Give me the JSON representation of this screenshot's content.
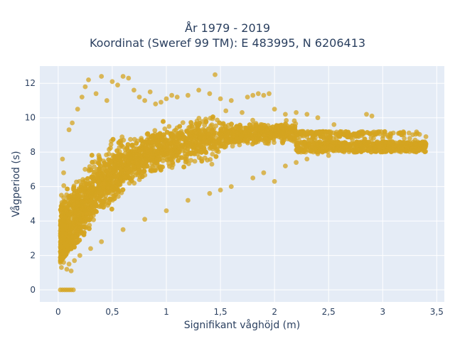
{
  "chart_data": {
    "type": "scatter",
    "title_lines": [
      "År 1979 - 2019",
      "Koordinat (Sweref 99 TM): E 483995, N 6206413"
    ],
    "xlabel": "Signifikant våghöjd (m)",
    "ylabel": "Vågperiod (s)",
    "xlim": [
      -0.17,
      3.57
    ],
    "ylim": [
      -0.7,
      13
    ],
    "x_ticks": [
      0,
      0.5,
      1,
      1.5,
      2,
      2.5,
      3,
      3.5
    ],
    "x_tick_labels": [
      "0",
      "0,5",
      "1",
      "1,5",
      "2",
      "2,5",
      "3",
      "3,5"
    ],
    "y_ticks": [
      0,
      2,
      4,
      6,
      8,
      10,
      12
    ],
    "y_tick_labels": [
      "0",
      "2",
      "4",
      "6",
      "8",
      "10",
      "12"
    ],
    "grid": true,
    "legend": "none",
    "colors": {
      "marker": "#d4a420",
      "plot_bg": "#e5ecf6",
      "grid": "#ffffff",
      "text": "#2a3f5f"
    },
    "marker_opacity": 0.75,
    "point_cloud": {
      "description_type": "dense scatter of wave height vs wave period",
      "x_range": [
        0,
        3.42
      ],
      "y_range": [
        0,
        12.5
      ],
      "zero_period_points_x_range": [
        0,
        0.15
      ]
    },
    "points": [
      [
        0.02,
        0
      ],
      [
        0.04,
        0
      ],
      [
        0.06,
        0
      ],
      [
        0.08,
        0
      ],
      [
        0.1,
        0
      ],
      [
        0.12,
        0
      ],
      [
        0.14,
        0
      ],
      [
        0.03,
        1.3
      ],
      [
        0.05,
        1.6
      ],
      [
        0.08,
        1.2
      ],
      [
        0.1,
        1.5
      ],
      [
        0.12,
        1.1
      ],
      [
        0.15,
        1.7
      ],
      [
        0.02,
        2.5
      ],
      [
        0.04,
        3.5
      ],
      [
        0.06,
        4.2
      ],
      [
        0.03,
        5.5
      ],
      [
        0.05,
        6.8
      ],
      [
        0.04,
        7.6
      ],
      [
        0.1,
        9.3
      ],
      [
        0.13,
        9.7
      ],
      [
        0.18,
        10.5
      ],
      [
        0.22,
        11.2
      ],
      [
        0.25,
        11.8
      ],
      [
        0.28,
        12.2
      ],
      [
        0.35,
        11.4
      ],
      [
        0.4,
        12.4
      ],
      [
        0.45,
        11.0
      ],
      [
        0.5,
        12.1
      ],
      [
        0.55,
        11.9
      ],
      [
        0.6,
        12.4
      ],
      [
        0.65,
        12.3
      ],
      [
        0.7,
        11.6
      ],
      [
        0.75,
        11.2
      ],
      [
        0.8,
        11.0
      ],
      [
        0.85,
        11.5
      ],
      [
        0.9,
        10.8
      ],
      [
        0.95,
        10.9
      ],
      [
        1.0,
        11.1
      ],
      [
        1.05,
        11.3
      ],
      [
        1.1,
        11.2
      ],
      [
        1.2,
        11.3
      ],
      [
        1.3,
        11.6
      ],
      [
        1.4,
        11.4
      ],
      [
        1.45,
        12.5
      ],
      [
        1.5,
        11.1
      ],
      [
        1.55,
        10.4
      ],
      [
        1.6,
        11.0
      ],
      [
        1.7,
        10.3
      ],
      [
        1.75,
        11.2
      ],
      [
        1.8,
        11.3
      ],
      [
        1.85,
        11.4
      ],
      [
        1.9,
        11.3
      ],
      [
        1.95,
        11.4
      ],
      [
        2.0,
        10.5
      ],
      [
        2.1,
        10.2
      ],
      [
        2.2,
        10.3
      ],
      [
        2.3,
        10.2
      ],
      [
        2.4,
        10.0
      ],
      [
        2.55,
        9.6
      ],
      [
        2.85,
        10.2
      ],
      [
        2.9,
        10.1
      ],
      [
        3.0,
        8.8
      ],
      [
        3.05,
        8.9
      ],
      [
        3.1,
        8.4
      ],
      [
        3.15,
        8.1
      ],
      [
        3.2,
        8.8
      ],
      [
        3.25,
        8.8
      ],
      [
        3.3,
        8.7
      ],
      [
        3.35,
        8.5
      ],
      [
        3.4,
        8.9
      ],
      [
        2.6,
        8.1
      ],
      [
        2.7,
        8.3
      ],
      [
        2.75,
        8.0
      ],
      [
        2.8,
        8.4
      ],
      [
        2.95,
        8.6
      ],
      [
        2.3,
        7.6
      ],
      [
        2.4,
        7.9
      ],
      [
        2.5,
        7.8
      ],
      [
        2.2,
        7.4
      ],
      [
        2.1,
        7.2
      ],
      [
        1.8,
        6.5
      ],
      [
        1.9,
        6.8
      ],
      [
        2.0,
        6.3
      ],
      [
        1.6,
        6.0
      ],
      [
        1.5,
        5.8
      ],
      [
        1.4,
        5.6
      ],
      [
        1.2,
        5.2
      ],
      [
        1.0,
        4.6
      ],
      [
        0.8,
        4.1
      ],
      [
        0.6,
        3.5
      ],
      [
        0.4,
        2.8
      ],
      [
        0.3,
        2.4
      ],
      [
        0.2,
        2.0
      ]
    ]
  }
}
